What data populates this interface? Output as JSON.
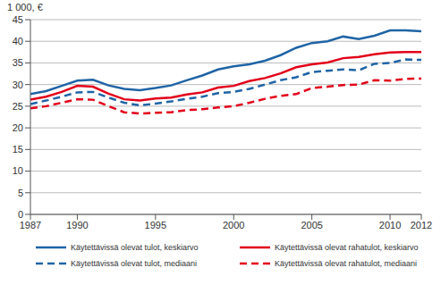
{
  "chart_data": {
    "type": "line",
    "ylabel": "1 000, €",
    "x": [
      1987,
      1988,
      1989,
      1990,
      1991,
      1992,
      1993,
      1994,
      1995,
      1996,
      1997,
      1998,
      1999,
      2000,
      2001,
      2002,
      2003,
      2004,
      2005,
      2006,
      2007,
      2008,
      2009,
      2010,
      2011,
      2012
    ],
    "xlim": [
      1987,
      2012
    ],
    "xticks": [
      1987,
      1990,
      1995,
      2000,
      2005,
      2010,
      2012
    ],
    "ylim": [
      0,
      45
    ],
    "yticks": [
      0,
      5,
      10,
      15,
      20,
      25,
      30,
      35,
      40,
      45
    ],
    "grid": true,
    "legend": "bottom",
    "series": [
      {
        "name": "Käytettävissä olevat tulot, keskiarvo",
        "color": "#2064a6",
        "line_style": "solid",
        "values": [
          27.8,
          28.5,
          29.7,
          30.9,
          31.1,
          29.8,
          29.0,
          28.7,
          29.2,
          29.8,
          31.0,
          32.1,
          33.5,
          34.2,
          34.7,
          35.5,
          36.8,
          38.5,
          39.6,
          40.0,
          41.1,
          40.5,
          41.3,
          42.5,
          42.5,
          42.3
        ]
      },
      {
        "name": "Käytettävissä olevat rahatulot, keskiarvo",
        "color": "#e2001a",
        "line_style": "solid",
        "values": [
          26.5,
          27.2,
          28.3,
          29.7,
          29.5,
          27.9,
          26.6,
          26.3,
          26.8,
          27.0,
          27.7,
          28.2,
          29.3,
          29.7,
          30.8,
          31.5,
          32.6,
          34.0,
          34.7,
          35.1,
          36.1,
          36.4,
          37.0,
          37.4,
          37.5,
          37.5
        ]
      },
      {
        "name": "Käytettävissä olevat tulot, mediaani",
        "color": "#2064a6",
        "line_style": "dashed",
        "values": [
          25.5,
          26.3,
          27.2,
          28.2,
          28.3,
          27.0,
          25.8,
          25.2,
          25.6,
          26.1,
          26.7,
          27.2,
          28.0,
          28.3,
          29.0,
          30.0,
          31.0,
          31.7,
          32.9,
          33.2,
          33.5,
          33.3,
          34.8,
          35.0,
          35.8,
          35.7
        ]
      },
      {
        "name": "Käytettävissä olevat rahatulot, mediaani",
        "color": "#e2001a",
        "line_style": "dashed",
        "values": [
          24.5,
          25.0,
          25.8,
          26.6,
          26.5,
          25.0,
          23.6,
          23.3,
          23.5,
          23.6,
          24.1,
          24.3,
          24.7,
          25.0,
          25.8,
          26.7,
          27.4,
          27.8,
          29.2,
          29.5,
          29.9,
          30.0,
          31.0,
          30.9,
          31.3,
          31.4
        ]
      }
    ]
  }
}
